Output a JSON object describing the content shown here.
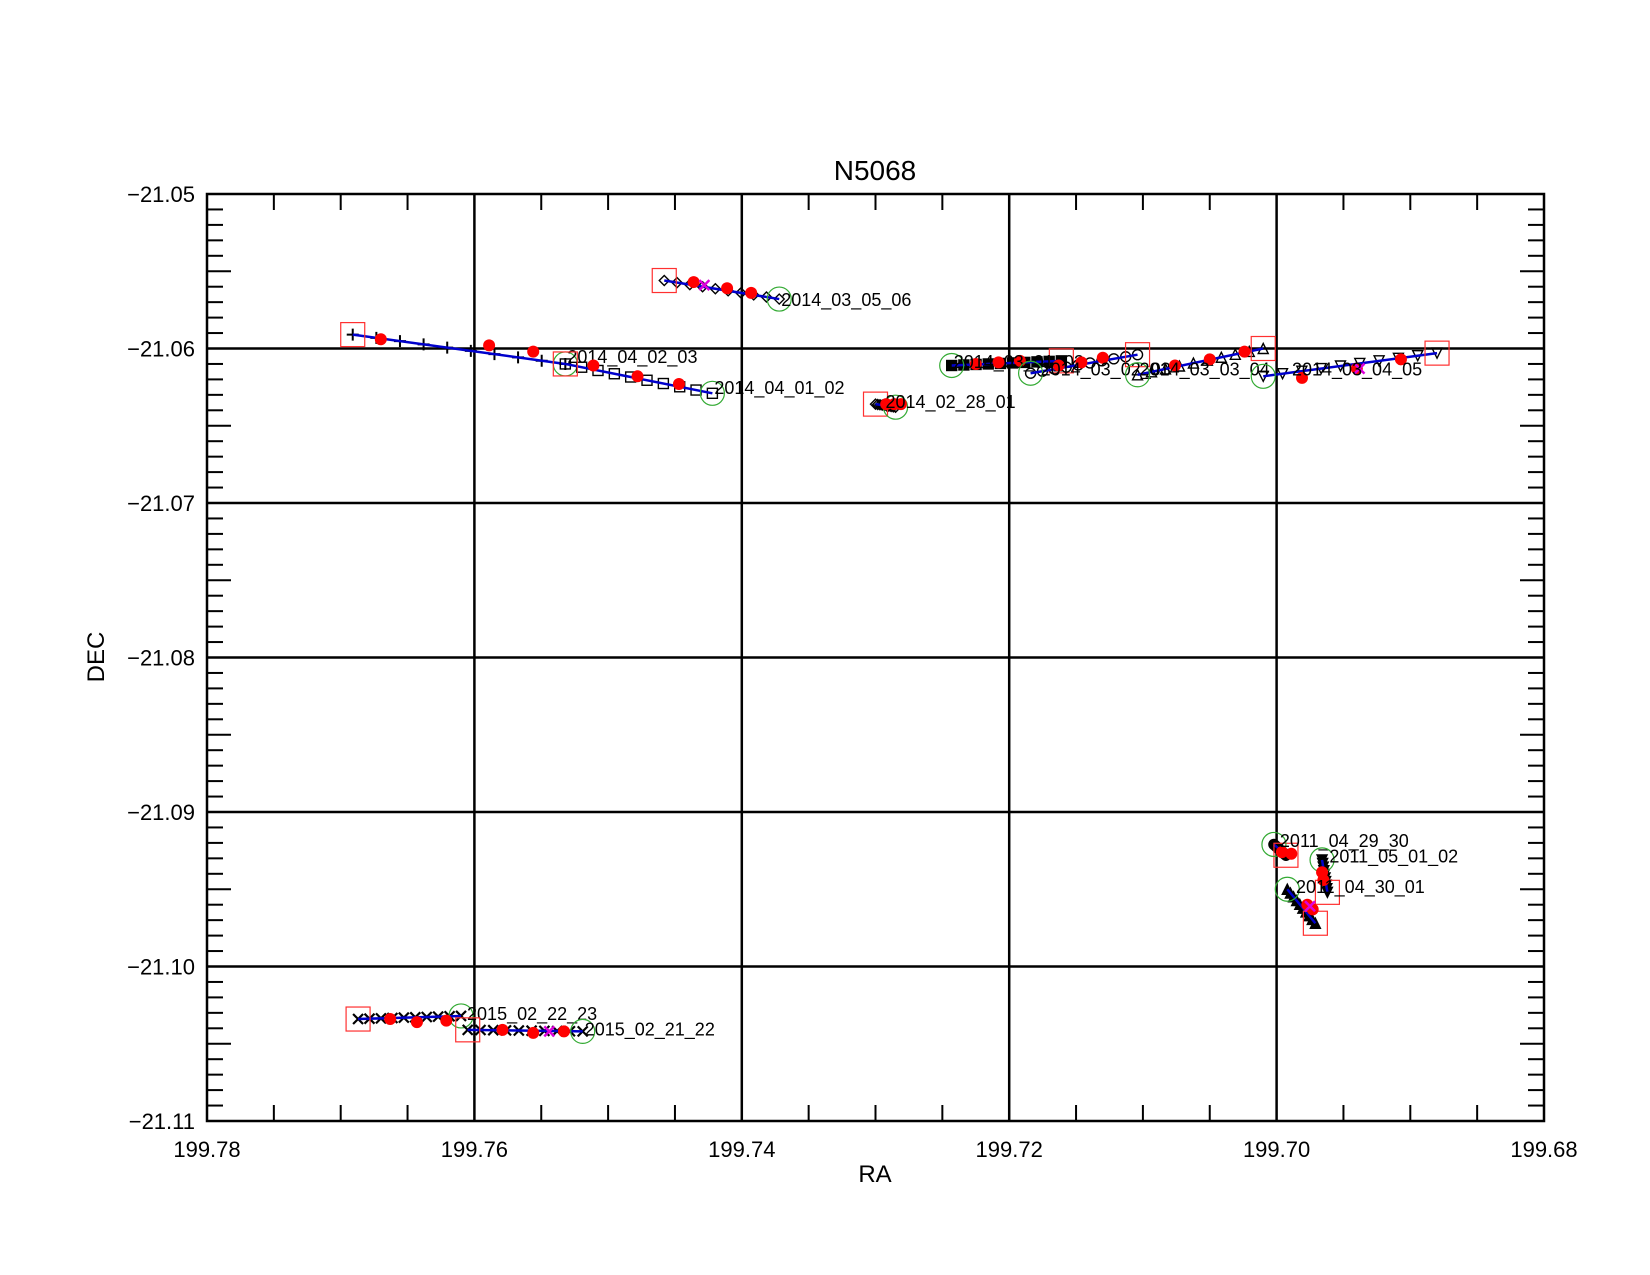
{
  "chart_data": {
    "type": "scatter",
    "title": "N5068",
    "xlabel": "RA",
    "ylabel": "DEC",
    "xlim": [
      199.78,
      199.68
    ],
    "ylim": [
      -21.11,
      -21.05
    ],
    "x_reversed": true,
    "grid": true,
    "x_ticks": [
      199.78,
      199.76,
      199.74,
      199.72,
      199.7,
      199.68
    ],
    "x_tick_labels": [
      "199.78",
      "199.76",
      "199.74",
      "199.72",
      "199.70",
      "199.68"
    ],
    "y_ticks": [
      -21.05,
      -21.06,
      -21.07,
      -21.08,
      -21.09,
      -21.1,
      -21.11
    ],
    "y_tick_labels": [
      "−21.05",
      "−21.06",
      "−21.07",
      "−21.08",
      "−21.09",
      "−21.10",
      "−21.11"
    ],
    "colors": {
      "track": "#0000cc",
      "point": "#ff0000",
      "cross": "#dd00dd",
      "start_square": "#ff3030",
      "end_circle": "#33aa33",
      "axis": "#000000"
    },
    "series": [
      {
        "label": "2014_03_05_06",
        "marker": "diamond",
        "start": [
          199.7458,
          -21.0556
        ],
        "end": [
          199.7372,
          -21.0568
        ],
        "points": [
          [
            199.7436,
            -21.0557
          ],
          [
            199.7411,
            -21.0561
          ],
          [
            199.7393,
            -21.0564
          ]
        ],
        "cross": [
          199.7428,
          -21.0559
        ],
        "label_at": [
          199.7372,
          -21.0568
        ]
      },
      {
        "label": "2014_04_02_03",
        "marker": "plus",
        "start": [
          199.7691,
          -21.0591
        ],
        "end": [
          199.7532,
          -21.061
        ],
        "points": [
          [
            199.767,
            -21.0594
          ],
          [
            199.7589,
            -21.0598
          ],
          [
            199.7556,
            -21.0602
          ]
        ],
        "cross": null,
        "label_at": [
          199.7532,
          -21.0605
        ]
      },
      {
        "label": "2014_04_01_02",
        "marker": "square",
        "start": [
          199.7532,
          -21.061
        ],
        "end": [
          199.7422,
          -21.0629
        ],
        "points": [
          [
            199.7511,
            -21.0611
          ],
          [
            199.7478,
            -21.0618
          ],
          [
            199.7447,
            -21.0623
          ]
        ],
        "cross": null,
        "label_at": [
          199.7422,
          -21.0625
        ]
      },
      {
        "label": "2014_02_28_01",
        "marker": "diamond",
        "start": [
          199.73,
          -21.0636
        ],
        "end": [
          199.7285,
          -21.0638
        ],
        "points": [
          [
            199.7292,
            -21.0636
          ],
          [
            199.7286,
            -21.0636
          ],
          [
            199.7281,
            -21.0636
          ]
        ],
        "cross": null,
        "label_at": [
          199.7294,
          -21.0634
        ]
      },
      {
        "label": "2014_03_01_02",
        "marker": "filled-square",
        "start": [
          199.7161,
          -21.0608
        ],
        "end": [
          199.7243,
          -21.0611
        ],
        "points": [
          [
            199.7225,
            -21.061
          ],
          [
            199.7208,
            -21.0609
          ],
          [
            199.7192,
            -21.0608
          ]
        ],
        "cross": null,
        "label_at": [
          199.7243,
          -21.0608
        ]
      },
      {
        "label": "2014_03_02_03",
        "marker": "circle",
        "start": [
          199.7104,
          -21.0604
        ],
        "end": [
          199.7184,
          -21.0616
        ],
        "points": [
          [
            199.7163,
            -21.0611
          ],
          [
            199.7146,
            -21.0609
          ],
          [
            199.713,
            -21.0606
          ]
        ],
        "cross": null,
        "label_at": [
          199.7178,
          -21.0613
        ]
      },
      {
        "label": "2014_03_03_04",
        "marker": "triangle",
        "start": [
          199.701,
          -21.06
        ],
        "end": [
          199.7104,
          -21.0617
        ],
        "points": [
          [
            199.7076,
            -21.0611
          ],
          [
            199.705,
            -21.0607
          ],
          [
            199.7024,
            -21.0602
          ]
        ],
        "cross": null,
        "label_at": [
          199.7104,
          -21.0613
        ]
      },
      {
        "label": "2014_03_04_05",
        "marker": "down-triangle",
        "start": [
          199.688,
          -21.0603
        ],
        "end": [
          199.701,
          -21.0618
        ],
        "points": [
          [
            199.6981,
            -21.0619
          ],
          [
            199.694,
            -21.0613
          ],
          [
            199.6907,
            -21.0607
          ]
        ],
        "cross": [
          199.6938,
          -21.0613
        ],
        "label_at": [
          199.699,
          -21.0613
        ]
      },
      {
        "label": "2011_04_29_30",
        "marker": "filled-circle",
        "start": [
          199.6993,
          -21.0928
        ],
        "end": [
          199.7002,
          -21.0921
        ],
        "points": [
          [
            199.6996,
            -21.0926
          ],
          [
            199.6989,
            -21.0927
          ]
        ],
        "cross": null,
        "label_at": [
          199.6999,
          -21.0918
        ]
      },
      {
        "label": "2011_05_01_02",
        "marker": "filled-down-triangle",
        "start": [
          199.6962,
          -21.0952
        ],
        "end": [
          199.6966,
          -21.0931
        ],
        "points": [
          [
            199.6966,
            -21.0939
          ],
          [
            199.6965,
            -21.0944
          ]
        ],
        "cross": null,
        "label_at": [
          199.6962,
          -21.0928
        ]
      },
      {
        "label": "2011_04_30_01",
        "marker": "filled-triangle",
        "start": [
          199.6971,
          -21.0972
        ],
        "end": [
          199.6992,
          -21.095
        ],
        "points": [
          [
            199.6977,
            -21.096
          ],
          [
            199.6973,
            -21.0963
          ]
        ],
        "cross": [
          199.6975,
          -21.0961
        ],
        "label_at": [
          199.6987,
          -21.0948
        ]
      },
      {
        "label": "2015_02_22_23",
        "marker": "x",
        "start": [
          199.7687,
          -21.1034
        ],
        "end": [
          199.761,
          -21.1032
        ],
        "points": [
          [
            199.7663,
            -21.1034
          ],
          [
            199.7643,
            -21.1036
          ],
          [
            199.7621,
            -21.1035
          ]
        ],
        "cross": null,
        "label_at": [
          199.7607,
          -21.103
        ]
      },
      {
        "label": "2015_02_21_22",
        "marker": "x",
        "start": [
          199.7605,
          -21.1041
        ],
        "end": [
          199.7519,
          -21.1042
        ],
        "points": [
          [
            199.7579,
            -21.1041
          ],
          [
            199.7556,
            -21.1043
          ],
          [
            199.7533,
            -21.1042
          ]
        ],
        "cross": [
          199.7544,
          -21.1042
        ],
        "label_at": [
          199.7519,
          -21.104
        ]
      }
    ]
  }
}
